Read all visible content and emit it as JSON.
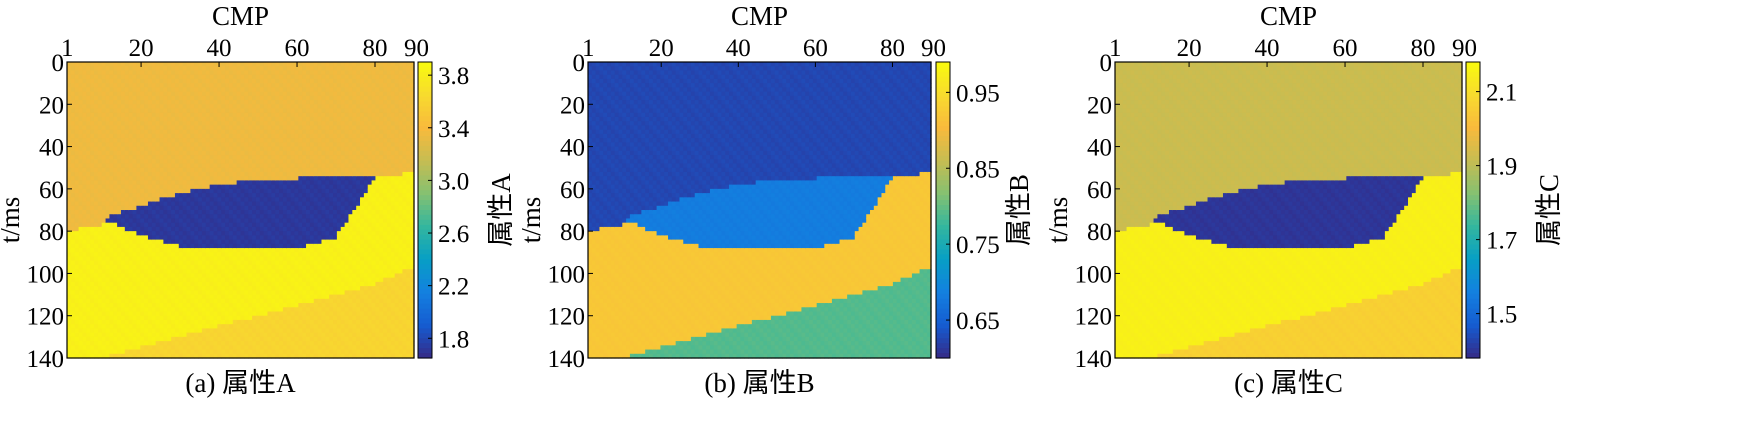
{
  "chart_data": [
    {
      "type": "heatmap",
      "caption": "(a) 属性A",
      "xlabel": "CMP",
      "ylabel": "t/ms",
      "x_ticks": [
        1,
        20,
        40,
        60,
        80,
        90
      ],
      "y_ticks": [
        0,
        20,
        40,
        60,
        80,
        100,
        120,
        140
      ],
      "xlim": [
        1,
        90
      ],
      "ylim": [
        0,
        140
      ],
      "colorbar_label": "属性A",
      "colorbar_ticks": [
        "3.8",
        "3.4",
        "3.0",
        "2.6",
        "2.2",
        "1.8"
      ],
      "colorbar_tick_values": [
        3.8,
        3.4,
        3.0,
        2.6,
        2.2,
        1.8
      ],
      "colorbar_range": [
        1.65,
        3.9
      ],
      "layer_values": {
        "top": 3.35,
        "anomaly": 1.72,
        "middle": 3.82,
        "bottom": 3.6
      }
    },
    {
      "type": "heatmap",
      "caption": "(b) 属性B",
      "xlabel": "CMP",
      "ylabel": "t/ms",
      "x_ticks": [
        1,
        20,
        40,
        60,
        80,
        90
      ],
      "y_ticks": [
        0,
        20,
        40,
        60,
        80,
        100,
        120,
        140
      ],
      "xlim": [
        1,
        90
      ],
      "ylim": [
        0,
        140
      ],
      "colorbar_label": "属性B",
      "colorbar_ticks": [
        "0.95",
        "0.85",
        "0.75",
        "0.65"
      ],
      "colorbar_tick_values": [
        0.95,
        0.85,
        0.75,
        0.65
      ],
      "colorbar_range": [
        0.6,
        0.99
      ],
      "layer_values": {
        "top": 0.625,
        "anomaly": 0.682,
        "middle": 0.92,
        "bottom": 0.79
      }
    },
    {
      "type": "heatmap",
      "caption": "(c) 属性C",
      "xlabel": "CMP",
      "ylabel": "t/ms",
      "x_ticks": [
        1,
        20,
        40,
        60,
        80,
        90
      ],
      "y_ticks": [
        0,
        20,
        40,
        60,
        80,
        100,
        120,
        140
      ],
      "xlim": [
        1,
        90
      ],
      "ylim": [
        0,
        140
      ],
      "colorbar_label": "属性C",
      "colorbar_ticks": [
        "2.1",
        "1.9",
        "1.7",
        "1.5"
      ],
      "colorbar_tick_values": [
        2.1,
        1.9,
        1.7,
        1.5
      ],
      "colorbar_range": [
        1.38,
        2.18
      ],
      "layer_values": {
        "top": 1.92,
        "anomaly": 1.4,
        "middle": 2.15,
        "bottom": 2.06
      }
    }
  ],
  "geology_model": {
    "cmp": [
      1,
      10,
      20,
      30,
      40,
      50,
      60,
      70,
      80,
      90
    ],
    "interface_top_ms": [
      80,
      77,
      75,
      74,
      72,
      70,
      67,
      60,
      55,
      52
    ],
    "interface_bottom_ms": [
      140,
      140,
      135,
      130,
      125,
      120,
      115,
      110,
      105,
      97
    ],
    "anomaly_cmp_range": [
      10,
      80
    ],
    "anomaly_top_ms": [
      74,
      68,
      62,
      58,
      56,
      55,
      55,
      55
    ],
    "anomaly_bottom_ms": [
      74,
      82,
      87,
      88,
      89,
      88,
      83,
      55
    ],
    "anomaly_cmp": [
      10,
      20,
      30,
      40,
      50,
      60,
      70,
      80
    ]
  }
}
